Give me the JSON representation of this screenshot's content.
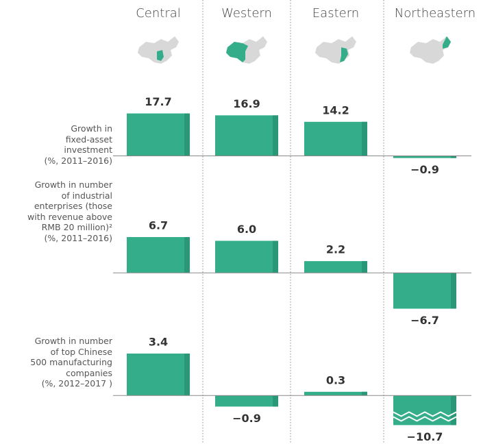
{
  "chart_data": {
    "type": "bar",
    "categories": [
      "Central",
      "Western",
      "Eastern",
      "Northeastern"
    ],
    "color": "#34ad8a",
    "panels": [
      {
        "label": "Growth in\nfixed-asset\ninvestment\n(%, 2011–2016)",
        "values": [
          17.7,
          16.9,
          14.2,
          -0.9
        ],
        "value_labels": [
          "17.7",
          "16.9",
          "14.2",
          "−0.9"
        ],
        "ylim": [
          -3,
          25
        ]
      },
      {
        "label": "Growth in number\nof industrial\nenterprises (those\nwith revenue above\nRMB 20 million)²\n(%, 2011–2016)",
        "values": [
          6.7,
          6.0,
          2.2,
          -6.7
        ],
        "value_labels": [
          "6.7",
          "6.0",
          "2.2",
          "−6.7"
        ],
        "ylim": [
          -9.2,
          12.6
        ]
      },
      {
        "label": "Growth in number\nof top Chinese\n500 manufacturing\ncompanies\n(%, 2012–2017 )",
        "values": [
          3.4,
          -0.9,
          0.3,
          -10.7
        ],
        "value_labels": [
          "3.4",
          "−0.9",
          "0.3",
          "−10.7"
        ],
        "ylim": [
          -2.4,
          5.4
        ]
      }
    ]
  }
}
